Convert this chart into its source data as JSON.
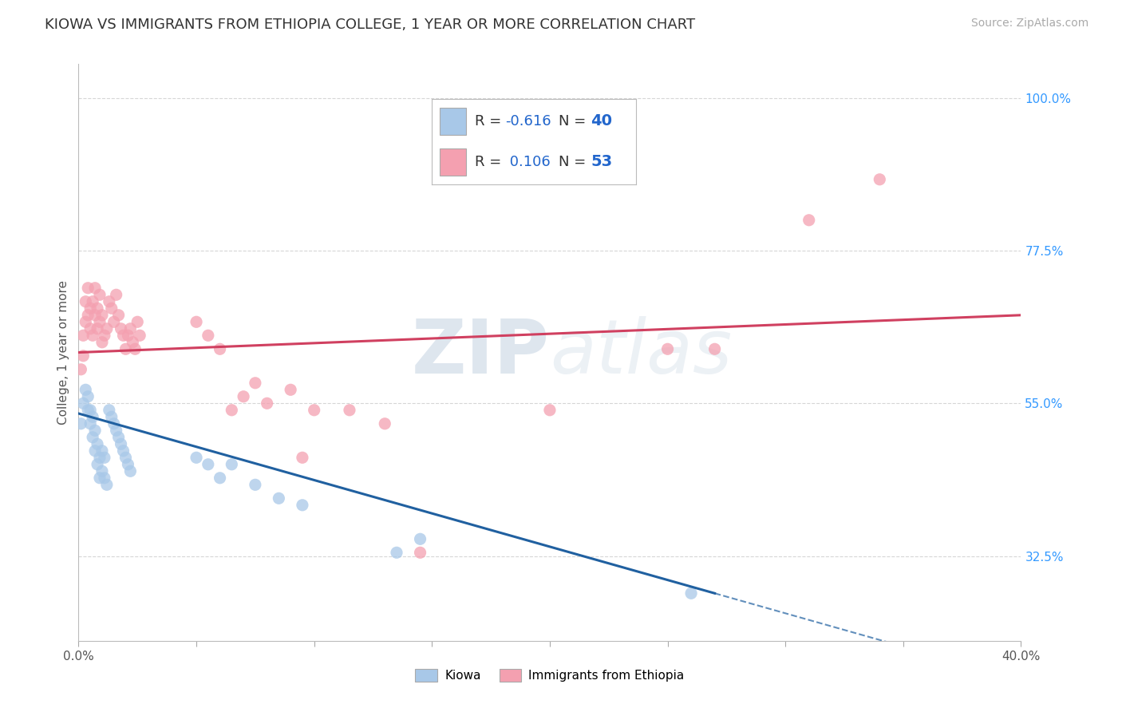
{
  "title": "KIOWA VS IMMIGRANTS FROM ETHIOPIA COLLEGE, 1 YEAR OR MORE CORRELATION CHART",
  "source_text": "Source: ZipAtlas.com",
  "ylabel": "College, 1 year or more",
  "xlim": [
    0.0,
    0.4
  ],
  "ylim": [
    0.2,
    1.05
  ],
  "xticks": [
    0.0,
    0.05,
    0.1,
    0.15,
    0.2,
    0.25,
    0.3,
    0.35,
    0.4
  ],
  "xtick_labels": [
    "0.0%",
    "",
    "",
    "",
    "",
    "",
    "",
    "",
    "40.0%"
  ],
  "ytick_labels_right": [
    "100.0%",
    "77.5%",
    "55.0%",
    "32.5%"
  ],
  "ytick_values_right": [
    1.0,
    0.775,
    0.55,
    0.325
  ],
  "kiowa_x": [
    0.001,
    0.002,
    0.003,
    0.004,
    0.004,
    0.005,
    0.005,
    0.006,
    0.006,
    0.007,
    0.007,
    0.008,
    0.008,
    0.009,
    0.009,
    0.01,
    0.01,
    0.011,
    0.011,
    0.012,
    0.013,
    0.014,
    0.015,
    0.016,
    0.017,
    0.018,
    0.019,
    0.02,
    0.021,
    0.022,
    0.05,
    0.055,
    0.06,
    0.065,
    0.075,
    0.085,
    0.095,
    0.135,
    0.145,
    0.26
  ],
  "kiowa_y": [
    0.52,
    0.55,
    0.57,
    0.54,
    0.56,
    0.52,
    0.54,
    0.5,
    0.53,
    0.48,
    0.51,
    0.46,
    0.49,
    0.44,
    0.47,
    0.45,
    0.48,
    0.44,
    0.47,
    0.43,
    0.54,
    0.53,
    0.52,
    0.51,
    0.5,
    0.49,
    0.48,
    0.47,
    0.46,
    0.45,
    0.47,
    0.46,
    0.44,
    0.46,
    0.43,
    0.41,
    0.4,
    0.33,
    0.35,
    0.27
  ],
  "ethiopia_x": [
    0.001,
    0.002,
    0.002,
    0.003,
    0.003,
    0.004,
    0.004,
    0.005,
    0.005,
    0.006,
    0.006,
    0.007,
    0.007,
    0.008,
    0.008,
    0.009,
    0.009,
    0.01,
    0.01,
    0.011,
    0.012,
    0.013,
    0.014,
    0.015,
    0.016,
    0.017,
    0.018,
    0.019,
    0.02,
    0.021,
    0.022,
    0.023,
    0.024,
    0.025,
    0.026,
    0.05,
    0.055,
    0.06,
    0.065,
    0.07,
    0.075,
    0.08,
    0.09,
    0.095,
    0.1,
    0.115,
    0.13,
    0.145,
    0.2,
    0.25,
    0.27,
    0.31,
    0.34
  ],
  "ethiopia_y": [
    0.6,
    0.62,
    0.65,
    0.67,
    0.7,
    0.68,
    0.72,
    0.66,
    0.69,
    0.65,
    0.7,
    0.68,
    0.72,
    0.69,
    0.66,
    0.71,
    0.67,
    0.64,
    0.68,
    0.65,
    0.66,
    0.7,
    0.69,
    0.67,
    0.71,
    0.68,
    0.66,
    0.65,
    0.63,
    0.65,
    0.66,
    0.64,
    0.63,
    0.67,
    0.65,
    0.67,
    0.65,
    0.63,
    0.54,
    0.56,
    0.58,
    0.55,
    0.57,
    0.47,
    0.54,
    0.54,
    0.52,
    0.33,
    0.54,
    0.63,
    0.63,
    0.82,
    0.88
  ],
  "kiowa_color": "#a8c8e8",
  "ethiopia_color": "#f4a0b0",
  "trend_kiowa_color": "#2060a0",
  "trend_ethiopia_color": "#d04060",
  "watermark_color": "#d0dce8",
  "background_color": "#ffffff",
  "grid_color": "#cccccc",
  "legend_r1": "-0.616",
  "legend_n1": "40",
  "legend_r2": "0.106",
  "legend_n2": "53"
}
